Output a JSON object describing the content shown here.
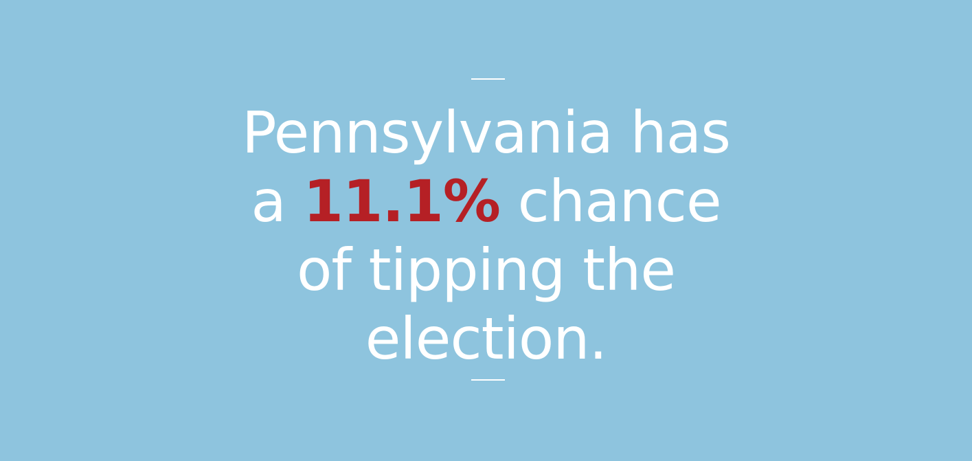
{
  "colors": {
    "background": "#8ec4de",
    "text": "#ffffff",
    "highlight": "#b52025",
    "rule": "#ffffff"
  },
  "statement": {
    "line1": "Pennsylvania has",
    "line2_prefix": "a ",
    "line2_highlight": "11.1%",
    "line2_suffix": " chance",
    "line3": "of tipping the",
    "line4": "election."
  }
}
